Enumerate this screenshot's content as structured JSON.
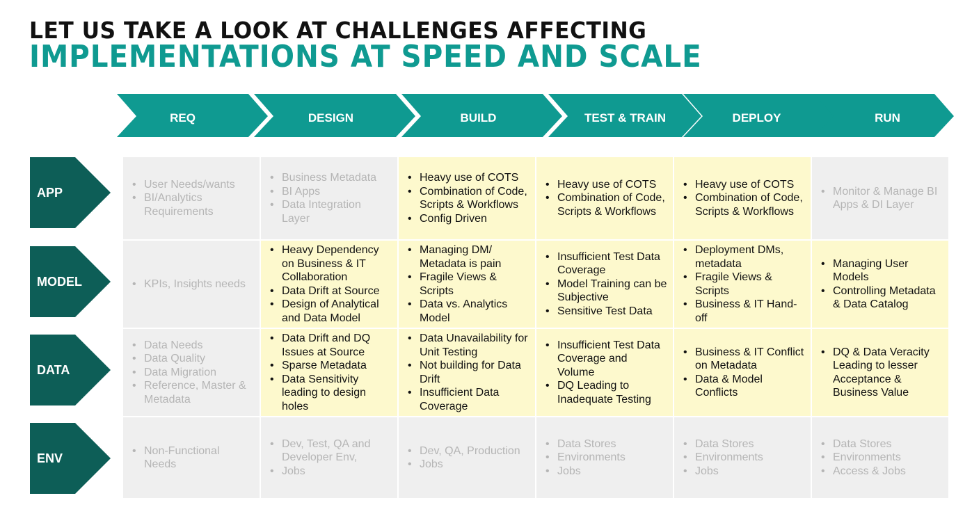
{
  "title": {
    "line1": "LET US TAKE A LOOK AT CHALLENGES AFFECTING",
    "line2": "IMPLEMENTATIONS AT SPEED AND SCALE"
  },
  "colors": {
    "teal": "#0f9a91",
    "dark_teal": "#0d5e57",
    "grey_cell": "#efefef",
    "yellow_cell": "#fdf9cd"
  },
  "stages": [
    "REQ",
    "DESIGN",
    "BUILD",
    "TEST & TRAIN",
    "DEPLOY",
    "RUN"
  ],
  "rows": [
    {
      "label": "APP",
      "cells": [
        {
          "style": "grey",
          "items": [
            "User Needs/wants",
            "BI/Analytics Requirements"
          ]
        },
        {
          "style": "grey",
          "items": [
            "Business Metadata",
            "BI Apps",
            "Data Integration Layer"
          ]
        },
        {
          "style": "yellow",
          "items": [
            "Heavy use of COTS",
            "Combination of Code, Scripts & Workflows",
            "Config Driven"
          ]
        },
        {
          "style": "yellow",
          "items": [
            "Heavy use of COTS",
            "Combination of Code, Scripts & Workflows"
          ]
        },
        {
          "style": "yellow",
          "items": [
            "Heavy use of COTS",
            "Combination of Code, Scripts & Workflows"
          ]
        },
        {
          "style": "grey",
          "items": [
            "Monitor & Manage BI Apps & DI Layer"
          ]
        }
      ]
    },
    {
      "label": "MODEL",
      "cells": [
        {
          "style": "grey",
          "items": [
            "KPIs, Insights needs"
          ]
        },
        {
          "style": "yellow",
          "items": [
            "Heavy Dependency on Business & IT Collaboration",
            "Data Drift at Source",
            "Design of Analytical and  Data Model"
          ]
        },
        {
          "style": "yellow",
          "items": [
            "Managing  DM/ Metadata  is pain",
            "Fragile Views & Scripts",
            "Data vs. Analytics Model"
          ]
        },
        {
          "style": "yellow",
          "items": [
            "Insufficient Test Data Coverage",
            "Model Training can be Subjective",
            "Sensitive Test Data"
          ]
        },
        {
          "style": "yellow",
          "items": [
            "Deployment DMs, metadata",
            "Fragile Views & Scripts",
            "Business & IT Hand-off"
          ]
        },
        {
          "style": "yellow",
          "items": [
            "Managing User Models",
            "Controlling Metadata & Data Catalog"
          ]
        }
      ]
    },
    {
      "label": "DATA",
      "cells": [
        {
          "style": "grey",
          "items": [
            "Data Needs",
            "Data Quality",
            "Data Migration",
            "Reference, Master & Metadata"
          ]
        },
        {
          "style": "yellow",
          "items": [
            "Data Drift and DQ Issues at Source",
            "Sparse Metadata",
            "Data Sensitivity leading to design holes"
          ]
        },
        {
          "style": "yellow",
          "items": [
            "Data Unavailability for Unit Testing",
            "Not building for Data Drift",
            "Insufficient Data Coverage"
          ]
        },
        {
          "style": "yellow",
          "items": [
            "Insufficient Test Data Coverage and Volume",
            "DQ Leading to Inadequate Testing"
          ]
        },
        {
          "style": "yellow",
          "items": [
            "Business & IT Conflict on Metadata",
            "Data & Model Conflicts"
          ]
        },
        {
          "style": "yellow",
          "items": [
            "DQ & Data Veracity Leading to lesser Acceptance & Business Value"
          ]
        }
      ]
    },
    {
      "label": "ENV",
      "cells": [
        {
          "style": "grey",
          "items": [
            "Non-Functional Needs"
          ]
        },
        {
          "style": "grey",
          "items": [
            "Dev, Test, QA and Developer Env,",
            "Jobs"
          ]
        },
        {
          "style": "grey",
          "items": [
            "Dev, QA, Production",
            "Jobs"
          ]
        },
        {
          "style": "grey",
          "items": [
            "Data Stores",
            "Environments",
            "Jobs"
          ]
        },
        {
          "style": "grey",
          "items": [
            "Data Stores",
            "Environments",
            "Jobs"
          ]
        },
        {
          "style": "grey",
          "items": [
            "Data Stores",
            "Environments",
            "Access & Jobs"
          ]
        }
      ]
    }
  ]
}
